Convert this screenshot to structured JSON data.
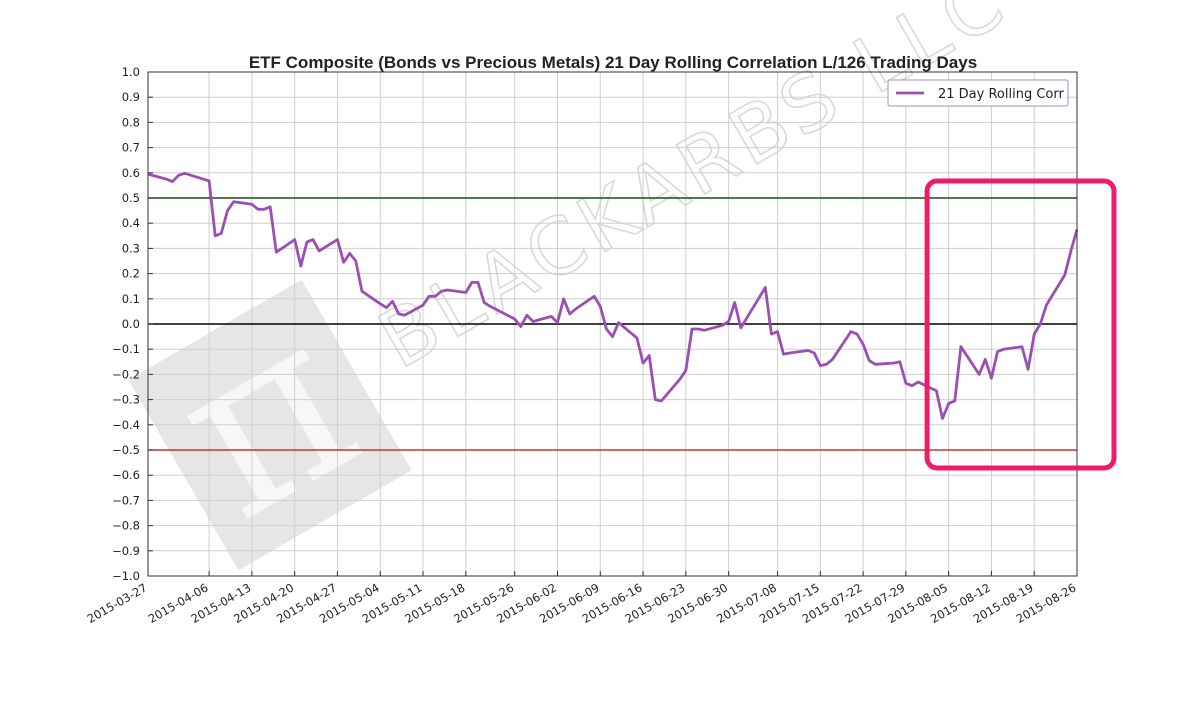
{
  "chart_data": {
    "type": "line",
    "title": "ETF Composite (Bonds vs Precious Metals) 21 Day Rolling Correlation L/126 Trading Days",
    "xlabel": "",
    "ylabel": "",
    "ylim": [
      -1.0,
      1.0
    ],
    "xlim": [
      "2015-03-27",
      "2015-08-26"
    ],
    "grid": true,
    "legend_position": "top-right",
    "y_ticks": [
      "1.0",
      "0.9",
      "0.8",
      "0.7",
      "0.6",
      "0.5",
      "0.4",
      "0.3",
      "0.2",
      "0.1",
      "0.0",
      "−0.1",
      "−0.2",
      "−0.3",
      "−0.4",
      "−0.5",
      "−0.6",
      "−0.7",
      "−0.8",
      "−0.9",
      "−1.0"
    ],
    "x_ticks": [
      "2015-03-27",
      "2015-04-06",
      "2015-04-13",
      "2015-04-20",
      "2015-04-27",
      "2015-05-04",
      "2015-05-11",
      "2015-05-18",
      "2015-05-26",
      "2015-06-02",
      "2015-06-09",
      "2015-06-16",
      "2015-06-23",
      "2015-06-30",
      "2015-07-08",
      "2015-07-15",
      "2015-07-22",
      "2015-07-29",
      "2015-08-05",
      "2015-08-12",
      "2015-08-19",
      "2015-08-26"
    ],
    "series": [
      {
        "name": "21 Day Rolling Corr",
        "color": "#9b4fb5",
        "points": [
          [
            "2015-03-27",
            0.595
          ],
          [
            "2015-03-30",
            0.575
          ],
          [
            "2015-03-31",
            0.565
          ],
          [
            "2015-04-01",
            0.59
          ],
          [
            "2015-04-02",
            0.598
          ],
          [
            "2015-04-06",
            0.568
          ],
          [
            "2015-04-07",
            0.35
          ],
          [
            "2015-04-08",
            0.36
          ],
          [
            "2015-04-09",
            0.45
          ],
          [
            "2015-04-10",
            0.485
          ],
          [
            "2015-04-13",
            0.475
          ],
          [
            "2015-04-14",
            0.455
          ],
          [
            "2015-04-15",
            0.455
          ],
          [
            "2015-04-16",
            0.465
          ],
          [
            "2015-04-17",
            0.285
          ],
          [
            "2015-04-20",
            0.335
          ],
          [
            "2015-04-21",
            0.23
          ],
          [
            "2015-04-22",
            0.325
          ],
          [
            "2015-04-23",
            0.335
          ],
          [
            "2015-04-24",
            0.29
          ],
          [
            "2015-04-27",
            0.335
          ],
          [
            "2015-04-28",
            0.245
          ],
          [
            "2015-04-29",
            0.28
          ],
          [
            "2015-04-30",
            0.25
          ],
          [
            "2015-05-01",
            0.13
          ],
          [
            "2015-05-04",
            0.08
          ],
          [
            "2015-05-05",
            0.065
          ],
          [
            "2015-05-06",
            0.09
          ],
          [
            "2015-05-07",
            0.04
          ],
          [
            "2015-05-08",
            0.035
          ],
          [
            "2015-05-11",
            0.075
          ],
          [
            "2015-05-12",
            0.11
          ],
          [
            "2015-05-13",
            0.11
          ],
          [
            "2015-05-14",
            0.13
          ],
          [
            "2015-05-15",
            0.135
          ],
          [
            "2015-05-18",
            0.125
          ],
          [
            "2015-05-19",
            0.165
          ],
          [
            "2015-05-20",
            0.165
          ],
          [
            "2015-05-21",
            0.085
          ],
          [
            "2015-05-22",
            0.07
          ],
          [
            "2015-05-26",
            0.02
          ],
          [
            "2015-05-27",
            -0.01
          ],
          [
            "2015-05-28",
            0.035
          ],
          [
            "2015-05-29",
            0.01
          ],
          [
            "2015-06-01",
            0.03
          ],
          [
            "2015-06-02",
            0.005
          ],
          [
            "2015-06-03",
            0.1
          ],
          [
            "2015-06-04",
            0.04
          ],
          [
            "2015-06-05",
            0.06
          ],
          [
            "2015-06-08",
            0.11
          ],
          [
            "2015-06-09",
            0.07
          ],
          [
            "2015-06-10",
            -0.02
          ],
          [
            "2015-06-11",
            -0.05
          ],
          [
            "2015-06-12",
            0.005
          ],
          [
            "2015-06-15",
            -0.055
          ],
          [
            "2015-06-16",
            -0.155
          ],
          [
            "2015-06-17",
            -0.125
          ],
          [
            "2015-06-18",
            -0.3
          ],
          [
            "2015-06-19",
            -0.305
          ],
          [
            "2015-06-22",
            -0.22
          ],
          [
            "2015-06-23",
            -0.185
          ],
          [
            "2015-06-24",
            -0.02
          ],
          [
            "2015-06-25",
            -0.02
          ],
          [
            "2015-06-26",
            -0.025
          ],
          [
            "2015-06-29",
            -0.005
          ],
          [
            "2015-06-30",
            0.01
          ],
          [
            "2015-07-01",
            0.085
          ],
          [
            "2015-07-02",
            -0.015
          ],
          [
            "2015-07-06",
            0.145
          ],
          [
            "2015-07-07",
            -0.04
          ],
          [
            "2015-07-08",
            -0.03
          ],
          [
            "2015-07-09",
            -0.12
          ],
          [
            "2015-07-10",
            -0.115
          ],
          [
            "2015-07-13",
            -0.105
          ],
          [
            "2015-07-14",
            -0.115
          ],
          [
            "2015-07-15",
            -0.165
          ],
          [
            "2015-07-16",
            -0.16
          ],
          [
            "2015-07-17",
            -0.14
          ],
          [
            "2015-07-20",
            -0.03
          ],
          [
            "2015-07-21",
            -0.04
          ],
          [
            "2015-07-22",
            -0.08
          ],
          [
            "2015-07-23",
            -0.145
          ],
          [
            "2015-07-24",
            -0.16
          ],
          [
            "2015-07-27",
            -0.155
          ],
          [
            "2015-07-28",
            -0.15
          ],
          [
            "2015-07-29",
            -0.235
          ],
          [
            "2015-07-30",
            -0.245
          ],
          [
            "2015-07-31",
            -0.23
          ],
          [
            "2015-08-03",
            -0.265
          ],
          [
            "2015-08-04",
            -0.375
          ],
          [
            "2015-08-05",
            -0.315
          ],
          [
            "2015-08-06",
            -0.305
          ],
          [
            "2015-08-07",
            -0.09
          ],
          [
            "2015-08-10",
            -0.2
          ],
          [
            "2015-08-11",
            -0.14
          ],
          [
            "2015-08-12",
            -0.215
          ],
          [
            "2015-08-13",
            -0.11
          ],
          [
            "2015-08-14",
            -0.1
          ],
          [
            "2015-08-17",
            -0.09
          ],
          [
            "2015-08-18",
            -0.18
          ],
          [
            "2015-08-19",
            -0.04
          ],
          [
            "2015-08-20",
            0.0
          ],
          [
            "2015-08-21",
            0.075
          ],
          [
            "2015-08-24",
            0.195
          ],
          [
            "2015-08-25",
            0.29
          ],
          [
            "2015-08-26",
            0.375
          ]
        ]
      }
    ],
    "reference_lines": [
      {
        "y": 0.5,
        "color": "#1c4a12"
      },
      {
        "y": 0.0,
        "color": "#000000"
      },
      {
        "y": -0.5,
        "color": "#c0392b"
      }
    ],
    "annotations": {
      "highlight_box_color": "#ee1d6a",
      "highlight_range": [
        "2015-07-31",
        "2015-08-26"
      ]
    }
  },
  "watermark": {
    "text": "BLACKARBS LLC",
    "logo_text": "π"
  },
  "colors": {
    "grid": "#cfcfcf",
    "axis": "#333333",
    "legend_border": "#9b8fd8"
  }
}
